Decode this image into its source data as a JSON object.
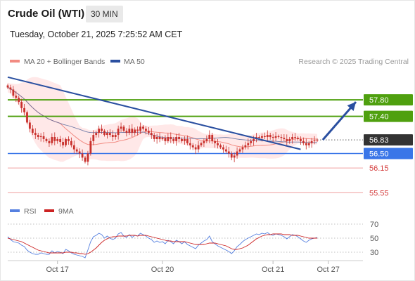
{
  "header": {
    "title": "Crude Oil (WTI)",
    "timeframe": "30 MIN"
  },
  "datetime": "Tuesday, October 21, 2025 7:25:52 AM CET",
  "colors": {
    "candle": "#c9302c",
    "bands": "#ffd6d6",
    "ma20": "#f28b82",
    "ma50": "#5a6b9e",
    "green": "#4fa00f",
    "blue": "#3a76e8",
    "red": "#d43c3c",
    "price": "#333333",
    "rsi": "#5580e0",
    "rsi_ma": "#cc2222",
    "trend": "#2a4fa0"
  },
  "chart_data": [
    {
      "type": "candlestick",
      "legend": {
        "ma20": "MA 20 + Bollinger Bands",
        "ma50": "MA 50"
      },
      "watermark": "Research © 2025 Trading Central",
      "ylim": [
        55.3,
        58.5
      ],
      "x_ticks": [
        "Oct 17",
        "Oct 20",
        "Oct 21",
        "Oct 27"
      ],
      "levels": [
        {
          "value": 57.8,
          "label": "57.80",
          "kind": "resistance"
        },
        {
          "value": 57.4,
          "label": "57.40",
          "kind": "resistance"
        },
        {
          "value": 56.83,
          "label": "56.83",
          "kind": "last"
        },
        {
          "value": 56.5,
          "label": "56.50",
          "kind": "pivot"
        },
        {
          "value": 56.15,
          "label": "56.15",
          "kind": "support"
        },
        {
          "value": 55.55,
          "label": "55.55",
          "kind": "support"
        }
      ],
      "trendline": {
        "from": [
          0,
          58.35
        ],
        "to": [
          106,
          56.6
        ]
      },
      "arrow": {
        "from": [
          114,
          56.83
        ],
        "to": [
          126,
          57.75
        ]
      },
      "series": [
        {
          "name": "price",
          "close": [
            58.1,
            58.05,
            57.9,
            57.85,
            57.75,
            57.6,
            57.5,
            57.25,
            57.1,
            57.0,
            56.95,
            56.9,
            56.92,
            56.85,
            56.8,
            56.75,
            56.9,
            56.8,
            56.85,
            56.78,
            56.7,
            56.85,
            56.8,
            56.7,
            56.6,
            56.55,
            56.5,
            56.4,
            56.3,
            56.5,
            56.8,
            56.95,
            57.0,
            57.1,
            57.05,
            56.95,
            57.0,
            56.95,
            56.9,
            56.95,
            57.1,
            57.15,
            57.05,
            57.0,
            57.1,
            57.0,
            57.08,
            57.05,
            57.15,
            57.1,
            57.05,
            57.0,
            56.95,
            56.85,
            56.9,
            56.85,
            56.88,
            56.8,
            56.9,
            56.85,
            56.8,
            56.9,
            56.85,
            56.8,
            56.85,
            56.75,
            56.7,
            56.65,
            56.6,
            56.7,
            56.75,
            56.8,
            56.85,
            56.95,
            56.8,
            56.75,
            56.7,
            56.65,
            56.6,
            56.55,
            56.5,
            56.4,
            56.45,
            56.55,
            56.6,
            56.65,
            56.7,
            56.75,
            56.8,
            56.85,
            56.9,
            56.88,
            56.92,
            56.9,
            56.95,
            56.9,
            56.88,
            56.92,
            56.9,
            56.88,
            56.85,
            56.8,
            56.85,
            56.9,
            56.88,
            56.85,
            56.8,
            56.75,
            56.7,
            56.75,
            56.8,
            56.82,
            56.83
          ]
        }
      ]
    },
    {
      "type": "line",
      "legend": {
        "rsi": "RSI",
        "rsi_ma": "9MA"
      },
      "ylim": [
        20,
        80
      ],
      "y_ticks": [
        70,
        50,
        30
      ],
      "series": [
        {
          "name": "RSI",
          "values": [
            52,
            48,
            45,
            44,
            43,
            40,
            38,
            33,
            30,
            28,
            27,
            27,
            29,
            28,
            27,
            27,
            32,
            29,
            31,
            30,
            28,
            34,
            32,
            29,
            27,
            26,
            25,
            24,
            22,
            33,
            45,
            52,
            54,
            57,
            55,
            50,
            53,
            50,
            48,
            50,
            56,
            58,
            53,
            51,
            55,
            51,
            54,
            53,
            57,
            55,
            53,
            50,
            48,
            44,
            46,
            44,
            45,
            42,
            47,
            45,
            42,
            47,
            45,
            42,
            45,
            41,
            39,
            37,
            35,
            40,
            43,
            46,
            48,
            53,
            45,
            42,
            39,
            37,
            35,
            33,
            31,
            28,
            32,
            38,
            41,
            45,
            48,
            50,
            52,
            54,
            56,
            55,
            57,
            56,
            58,
            55,
            54,
            56,
            55,
            54,
            52,
            49,
            52,
            55,
            54,
            52,
            49,
            46,
            44,
            47,
            49,
            50,
            51
          ]
        },
        {
          "name": "9MA",
          "values": [
            50,
            49,
            48,
            47,
            46,
            45,
            43,
            41,
            39,
            37,
            35,
            33,
            32,
            31,
            30,
            29,
            29,
            29,
            29,
            29,
            29,
            30,
            30,
            30,
            29,
            29,
            28,
            28,
            27,
            28,
            30,
            33,
            36,
            40,
            44,
            47,
            49,
            51,
            52,
            52,
            53,
            53,
            53,
            53,
            54,
            54,
            54,
            53,
            54,
            54,
            54,
            53,
            52,
            51,
            50,
            49,
            48,
            47,
            46,
            46,
            45,
            45,
            45,
            45,
            45,
            44,
            43,
            42,
            41,
            41,
            41,
            41,
            42,
            43,
            43,
            43,
            42,
            41,
            40,
            39,
            37,
            35,
            34,
            34,
            35,
            36,
            38,
            40,
            43,
            46,
            49,
            51,
            53,
            54,
            55,
            55,
            56,
            56,
            56,
            56,
            55,
            55,
            55,
            54,
            54,
            54,
            53,
            52,
            51,
            50,
            50,
            50,
            50
          ]
        }
      ]
    }
  ]
}
